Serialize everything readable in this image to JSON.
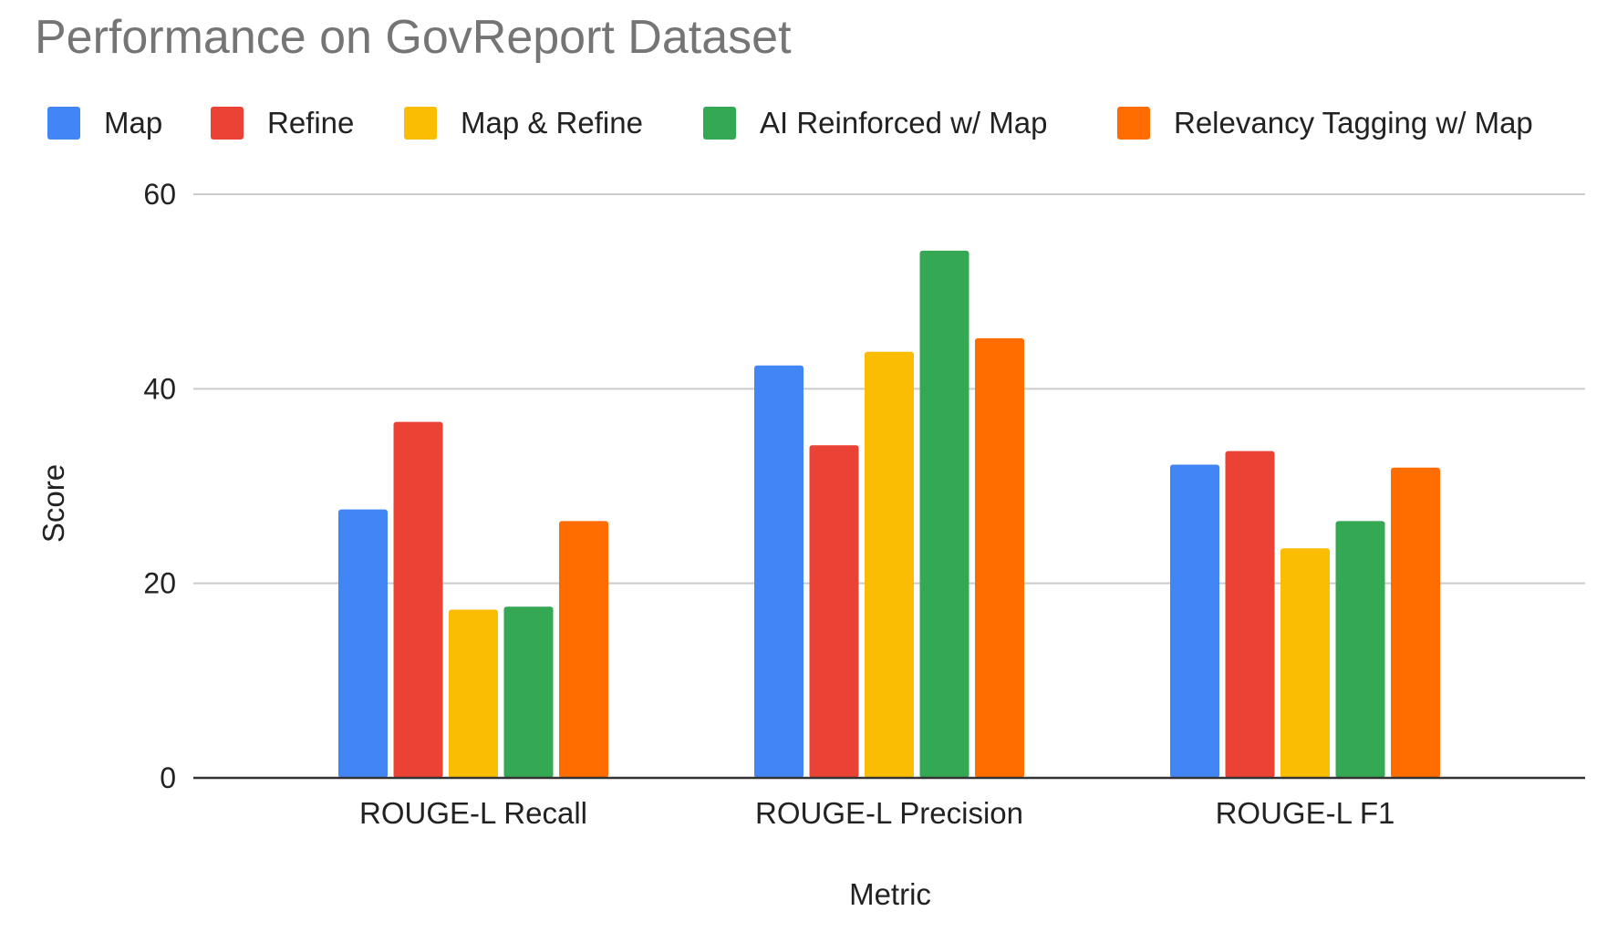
{
  "chart_data": {
    "type": "bar",
    "title": "Performance on GovReport Dataset",
    "xlabel": "Metric",
    "ylabel": "Score",
    "ylim": [
      0,
      60
    ],
    "yticks": [
      0,
      20,
      40,
      60
    ],
    "grid": true,
    "legend_position": "top",
    "categories": [
      "ROUGE-L Recall",
      "ROUGE-L Precision",
      "ROUGE-L F1"
    ],
    "series": [
      {
        "name": "Map",
        "color": "#4285F4",
        "values": [
          27.6,
          42.4,
          32.2
        ]
      },
      {
        "name": "Refine",
        "color": "#EA4335",
        "values": [
          36.6,
          34.2,
          33.6
        ]
      },
      {
        "name": "Map & Refine",
        "color": "#FBBC04",
        "values": [
          17.3,
          43.8,
          23.6
        ]
      },
      {
        "name": "AI Reinforced w/ Map",
        "color": "#34A853",
        "values": [
          17.6,
          54.2,
          26.4
        ]
      },
      {
        "name": "Relevancy Tagging w/ Map",
        "color": "#FF6D01",
        "values": [
          26.4,
          45.2,
          31.9
        ]
      }
    ]
  }
}
